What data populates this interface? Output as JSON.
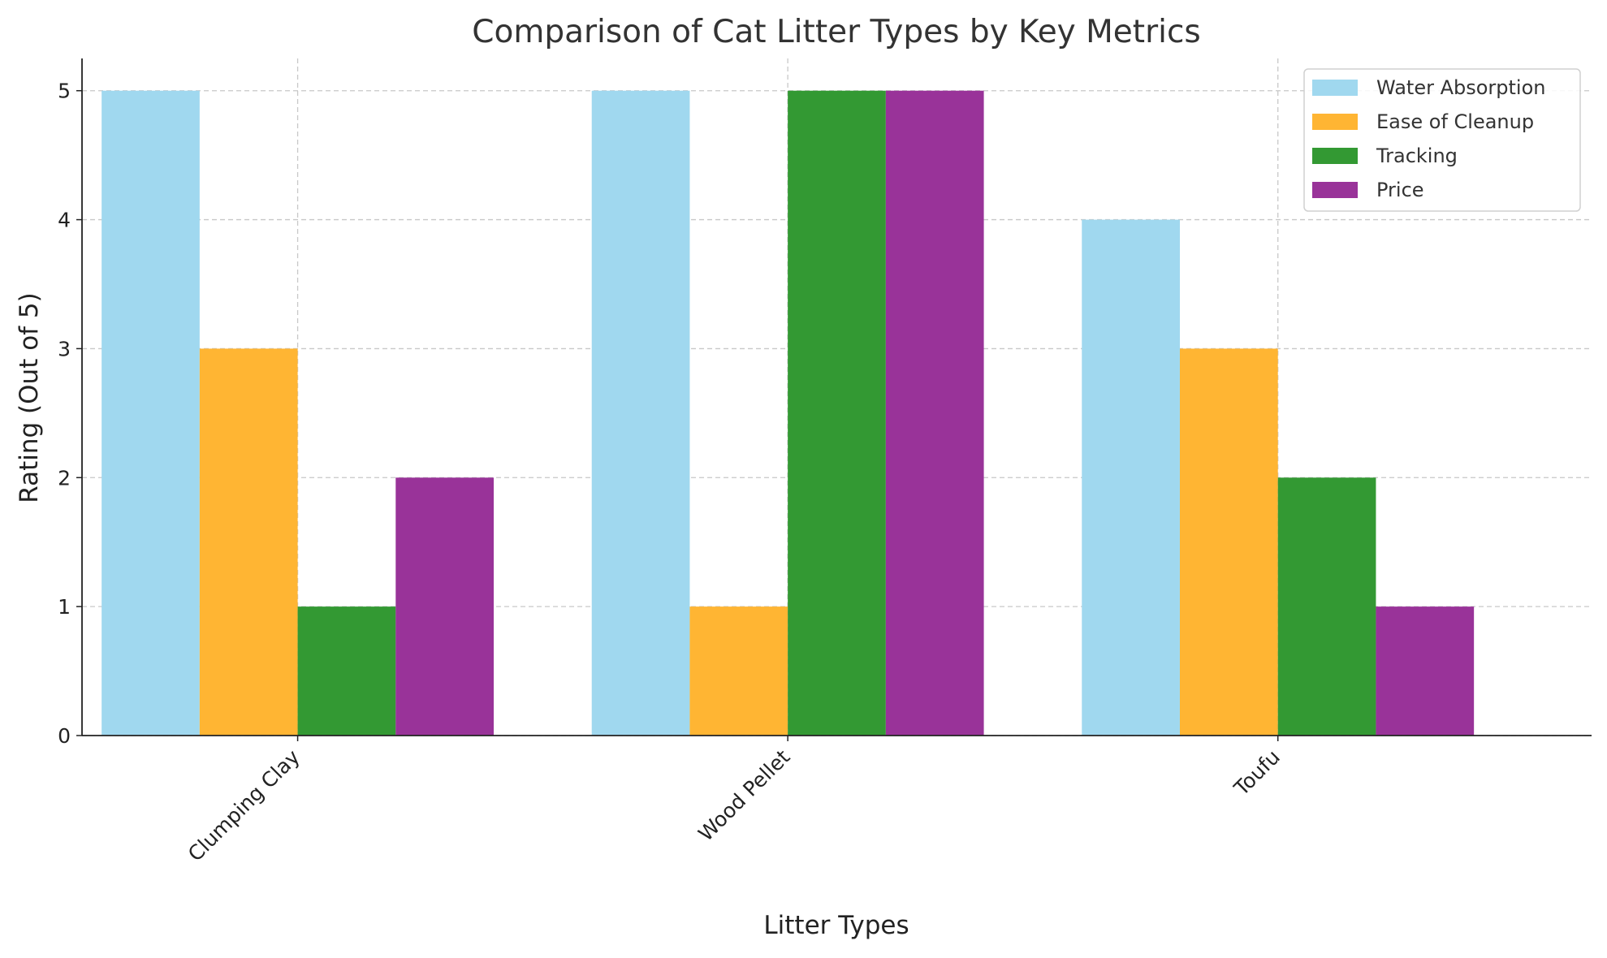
{
  "chart_data": {
    "type": "bar",
    "title": "Comparison of Cat Litter Types by Key Metrics",
    "xlabel": "Litter Types",
    "ylabel": "Rating (Out of 5)",
    "categories": [
      "Clumping Clay",
      "Wood Pellet",
      "Toufu"
    ],
    "series": [
      {
        "name": "Water Absorption",
        "values": [
          5,
          5,
          4
        ],
        "color": "#a0d8ef"
      },
      {
        "name": "Ease of Cleanup",
        "values": [
          3,
          1,
          3
        ],
        "color": "#ffb533"
      },
      {
        "name": "Tracking",
        "values": [
          1,
          5,
          2
        ],
        "color": "#339933"
      },
      {
        "name": "Price",
        "values": [
          2,
          5,
          1
        ],
        "color": "#993399"
      }
    ],
    "ylim": [
      0,
      5.25
    ],
    "yticks": [
      0,
      1,
      2,
      3,
      4,
      5
    ],
    "grid": true,
    "legend": "top-right"
  }
}
